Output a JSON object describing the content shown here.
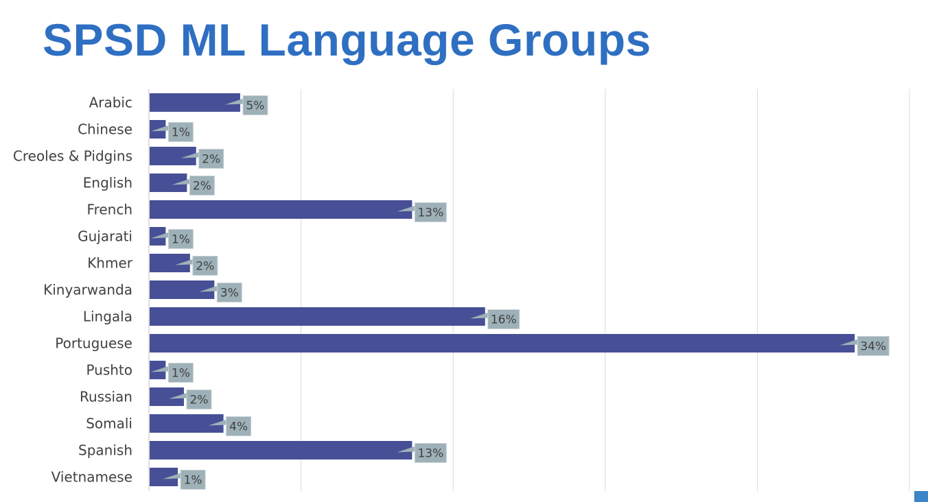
{
  "title": "SPSD ML Language Groups",
  "chart_data": {
    "type": "bar",
    "orientation": "horizontal",
    "title": "SPSD ML Language Groups",
    "categories": [
      "Arabic",
      "Chinese",
      "Creoles & Pidgins",
      "English",
      "French",
      "Gujarati",
      "Khmer",
      "Kinyarwanda",
      "Lingala",
      "Portuguese",
      "Pushto",
      "Russian",
      "Somali",
      "Spanish",
      "Vietnamese"
    ],
    "values": [
      5,
      1,
      2,
      2,
      13,
      1,
      2,
      3,
      16,
      34,
      1,
      2,
      4,
      13,
      1
    ],
    "value_labels": [
      "5%",
      "1%",
      "2%",
      "2%",
      "13%",
      "1%",
      "2%",
      "3%",
      "16%",
      "34%",
      "1%",
      "2%",
      "4%",
      "13%",
      "1%"
    ],
    "bar_values_estimated": [
      6,
      1.1,
      3.1,
      2.5,
      17.3,
      1.1,
      2.7,
      4.3,
      22.1,
      46.4,
      1.1,
      2.3,
      4.9,
      17.3,
      1.9
    ],
    "xlim": [
      0,
      50
    ],
    "x_gridlines": [
      10,
      20,
      30,
      40,
      50
    ],
    "tick_labels_x_visible": false,
    "grid": true,
    "legend": "none",
    "colors": {
      "title": "#2f6fc2",
      "bar": "#474f96",
      "label_box": "#9eb1b8",
      "label_box_border": "#c9d4d8",
      "label_text": "#404040",
      "category_text": "#404040",
      "gridline": "#d9d9d9",
      "axis": "#bfbfbf"
    }
  }
}
